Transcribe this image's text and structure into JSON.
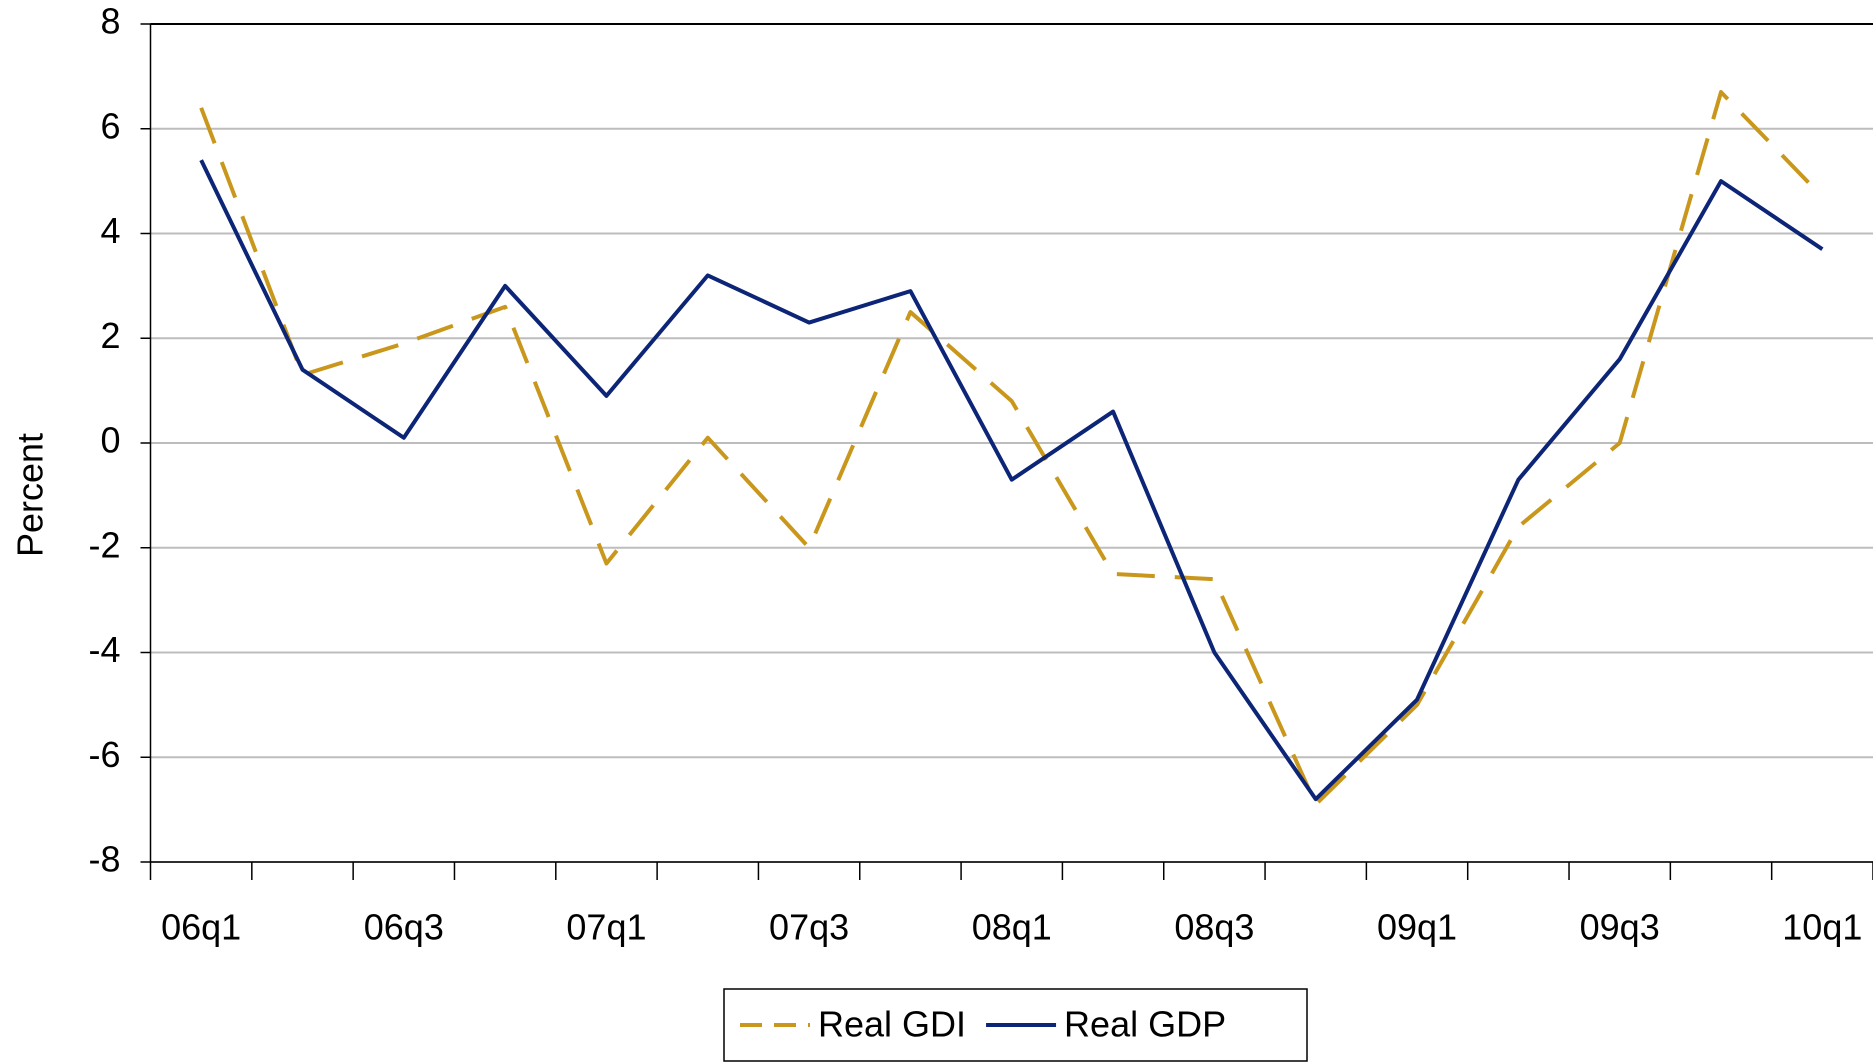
{
  "chart_data": {
    "type": "line",
    "y_label": "Percent",
    "categories": [
      "06q1",
      null,
      "06q3",
      null,
      "07q1",
      null,
      "07q3",
      null,
      "08q1",
      null,
      "08q3",
      null,
      "09q1",
      null,
      "09q3",
      null,
      "10q1"
    ],
    "series": [
      {
        "name": "Real GDI",
        "color": "#c9971c",
        "dashed": true,
        "values": [
          6.4,
          1.3,
          1.9,
          2.6,
          -2.3,
          0.1,
          -2.0,
          2.5,
          0.8,
          -2.5,
          -2.6,
          -6.9,
          -5.0,
          -1.6,
          0.0,
          6.7,
          4.7
        ]
      },
      {
        "name": "Real GDP",
        "color": "#0c2577",
        "dashed": false,
        "values": [
          5.4,
          1.4,
          0.1,
          3.0,
          0.9,
          3.2,
          2.3,
          2.9,
          -0.7,
          0.6,
          -4.0,
          -6.8,
          -4.9,
          -0.7,
          1.6,
          5.0,
          3.7
        ]
      }
    ],
    "ylim": [
      -8,
      8
    ],
    "yticks": [
      -8,
      -6,
      -4,
      -2,
      0,
      2,
      4,
      6,
      8
    ],
    "grid": true,
    "legend": "bottom"
  }
}
